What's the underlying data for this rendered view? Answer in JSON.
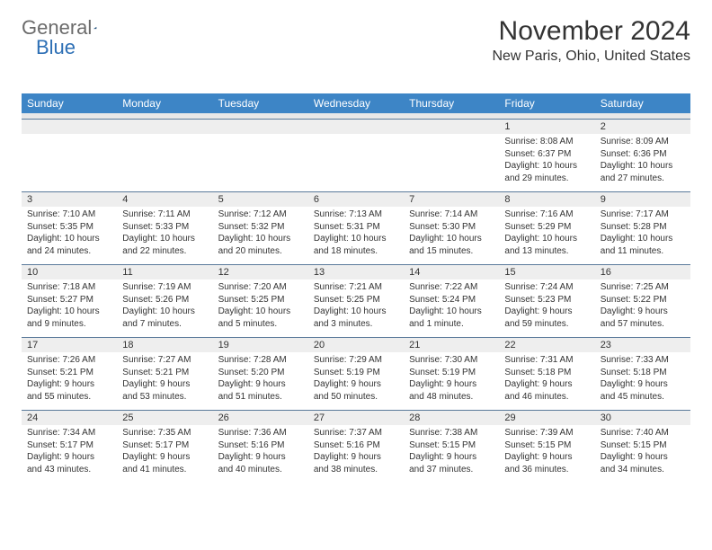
{
  "logo": {
    "text_general": "General",
    "text_blue": "Blue"
  },
  "header": {
    "month_title": "November 2024",
    "location": "New Paris, Ohio, United States"
  },
  "colors": {
    "header_bg": "#3d85c6",
    "header_text": "#ffffff",
    "date_row_bg": "#eeeeee",
    "date_row_border": "#5a7a9a",
    "gap_bg": "#e8e8e8",
    "logo_gray": "#6b6b6b",
    "logo_blue": "#2d6fb5",
    "logo_triangle": "#1f4e79"
  },
  "day_headers": [
    "Sunday",
    "Monday",
    "Tuesday",
    "Wednesday",
    "Thursday",
    "Friday",
    "Saturday"
  ],
  "weeks": [
    {
      "dates": [
        "",
        "",
        "",
        "",
        "",
        "1",
        "2"
      ],
      "cells": [
        "",
        "",
        "",
        "",
        "",
        "Sunrise: 8:08 AM\nSunset: 6:37 PM\nDaylight: 10 hours and 29 minutes.",
        "Sunrise: 8:09 AM\nSunset: 6:36 PM\nDaylight: 10 hours and 27 minutes."
      ]
    },
    {
      "dates": [
        "3",
        "4",
        "5",
        "6",
        "7",
        "8",
        "9"
      ],
      "cells": [
        "Sunrise: 7:10 AM\nSunset: 5:35 PM\nDaylight: 10 hours and 24 minutes.",
        "Sunrise: 7:11 AM\nSunset: 5:33 PM\nDaylight: 10 hours and 22 minutes.",
        "Sunrise: 7:12 AM\nSunset: 5:32 PM\nDaylight: 10 hours and 20 minutes.",
        "Sunrise: 7:13 AM\nSunset: 5:31 PM\nDaylight: 10 hours and 18 minutes.",
        "Sunrise: 7:14 AM\nSunset: 5:30 PM\nDaylight: 10 hours and 15 minutes.",
        "Sunrise: 7:16 AM\nSunset: 5:29 PM\nDaylight: 10 hours and 13 minutes.",
        "Sunrise: 7:17 AM\nSunset: 5:28 PM\nDaylight: 10 hours and 11 minutes."
      ]
    },
    {
      "dates": [
        "10",
        "11",
        "12",
        "13",
        "14",
        "15",
        "16"
      ],
      "cells": [
        "Sunrise: 7:18 AM\nSunset: 5:27 PM\nDaylight: 10 hours and 9 minutes.",
        "Sunrise: 7:19 AM\nSunset: 5:26 PM\nDaylight: 10 hours and 7 minutes.",
        "Sunrise: 7:20 AM\nSunset: 5:25 PM\nDaylight: 10 hours and 5 minutes.",
        "Sunrise: 7:21 AM\nSunset: 5:25 PM\nDaylight: 10 hours and 3 minutes.",
        "Sunrise: 7:22 AM\nSunset: 5:24 PM\nDaylight: 10 hours and 1 minute.",
        "Sunrise: 7:24 AM\nSunset: 5:23 PM\nDaylight: 9 hours and 59 minutes.",
        "Sunrise: 7:25 AM\nSunset: 5:22 PM\nDaylight: 9 hours and 57 minutes."
      ]
    },
    {
      "dates": [
        "17",
        "18",
        "19",
        "20",
        "21",
        "22",
        "23"
      ],
      "cells": [
        "Sunrise: 7:26 AM\nSunset: 5:21 PM\nDaylight: 9 hours and 55 minutes.",
        "Sunrise: 7:27 AM\nSunset: 5:21 PM\nDaylight: 9 hours and 53 minutes.",
        "Sunrise: 7:28 AM\nSunset: 5:20 PM\nDaylight: 9 hours and 51 minutes.",
        "Sunrise: 7:29 AM\nSunset: 5:19 PM\nDaylight: 9 hours and 50 minutes.",
        "Sunrise: 7:30 AM\nSunset: 5:19 PM\nDaylight: 9 hours and 48 minutes.",
        "Sunrise: 7:31 AM\nSunset: 5:18 PM\nDaylight: 9 hours and 46 minutes.",
        "Sunrise: 7:33 AM\nSunset: 5:18 PM\nDaylight: 9 hours and 45 minutes."
      ]
    },
    {
      "dates": [
        "24",
        "25",
        "26",
        "27",
        "28",
        "29",
        "30"
      ],
      "cells": [
        "Sunrise: 7:34 AM\nSunset: 5:17 PM\nDaylight: 9 hours and 43 minutes.",
        "Sunrise: 7:35 AM\nSunset: 5:17 PM\nDaylight: 9 hours and 41 minutes.",
        "Sunrise: 7:36 AM\nSunset: 5:16 PM\nDaylight: 9 hours and 40 minutes.",
        "Sunrise: 7:37 AM\nSunset: 5:16 PM\nDaylight: 9 hours and 38 minutes.",
        "Sunrise: 7:38 AM\nSunset: 5:15 PM\nDaylight: 9 hours and 37 minutes.",
        "Sunrise: 7:39 AM\nSunset: 5:15 PM\nDaylight: 9 hours and 36 minutes.",
        "Sunrise: 7:40 AM\nSunset: 5:15 PM\nDaylight: 9 hours and 34 minutes."
      ]
    }
  ]
}
